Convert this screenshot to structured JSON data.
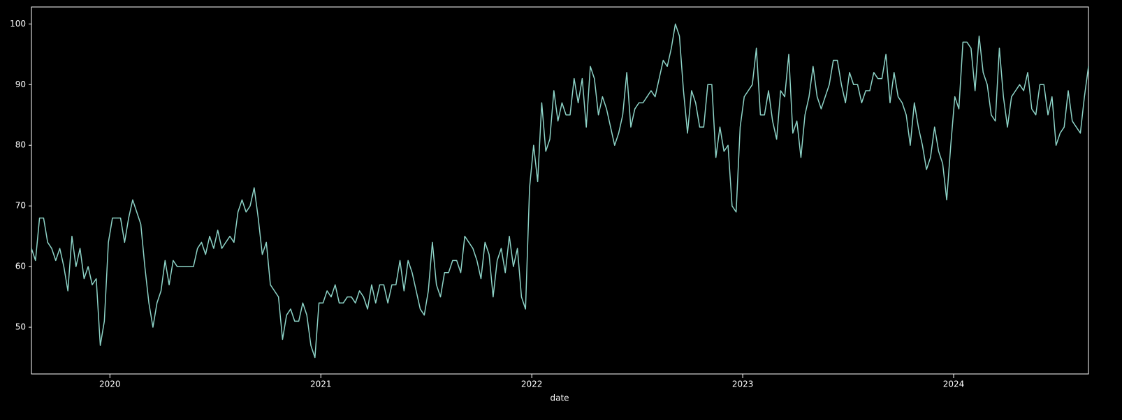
{
  "chart_data": {
    "type": "line",
    "x_label": "date",
    "color": "#8dd3c7",
    "xlim": [
      2019.628,
      2024.6392
    ],
    "xticks": [
      2020,
      2021,
      2022,
      2023,
      2024
    ],
    "ylim": [
      42.3,
      102.8
    ],
    "yticks": [
      50,
      60,
      70,
      80,
      90,
      100
    ],
    "x": [
      2019.628,
      2019.6472,
      2019.6664,
      2019.6856,
      2019.7048,
      2019.724,
      2019.7432,
      2019.7624,
      2019.7816,
      2019.8008,
      2019.82,
      2019.8392,
      2019.8584,
      2019.8776,
      2019.8968,
      2019.916,
      2019.9352,
      2019.9544,
      2019.9736,
      2019.9928,
      2020.012,
      2020.0312,
      2020.0504,
      2020.0696,
      2020.0888,
      2020.108,
      2020.1272,
      2020.1464,
      2020.1656,
      2020.1848,
      2020.204,
      2020.2232,
      2020.2424,
      2020.2616,
      2020.2808,
      2020.3,
      2020.3192,
      2020.3384,
      2020.3576,
      2020.3768,
      2020.396,
      2020.4152,
      2020.4344,
      2020.4536,
      2020.4728,
      2020.492,
      2020.5112,
      2020.5304,
      2020.5496,
      2020.5688,
      2020.588,
      2020.6072,
      2020.6264,
      2020.6456,
      2020.6648,
      2020.684,
      2020.7032,
      2020.7224,
      2020.7416,
      2020.7608,
      2020.78,
      2020.7992,
      2020.8184,
      2020.8376,
      2020.8568,
      2020.876,
      2020.8952,
      2020.9144,
      2020.9336,
      2020.9528,
      2020.972,
      2020.9912,
      2021.0104,
      2021.0296,
      2021.0488,
      2021.068,
      2021.0872,
      2021.1064,
      2021.1256,
      2021.1448,
      2021.164,
      2021.1832,
      2021.2024,
      2021.2216,
      2021.2408,
      2021.26,
      2021.2792,
      2021.2984,
      2021.3176,
      2021.3368,
      2021.356,
      2021.3752,
      2021.3944,
      2021.4136,
      2021.4328,
      2021.452,
      2021.4712,
      2021.4904,
      2021.5096,
      2021.5288,
      2021.548,
      2021.5672,
      2021.5864,
      2021.6056,
      2021.6248,
      2021.644,
      2021.6632,
      2021.6824,
      2021.7016,
      2021.7208,
      2021.74,
      2021.7592,
      2021.7784,
      2021.7976,
      2021.8168,
      2021.836,
      2021.8552,
      2021.8744,
      2021.8936,
      2021.9128,
      2021.932,
      2021.9512,
      2021.9704,
      2021.9896,
      2022.0088,
      2022.028,
      2022.0472,
      2022.0664,
      2022.0856,
      2022.1048,
      2022.124,
      2022.1432,
      2022.1624,
      2022.1816,
      2022.2008,
      2022.22,
      2022.2392,
      2022.2584,
      2022.2776,
      2022.2968,
      2022.316,
      2022.3352,
      2022.3544,
      2022.3736,
      2022.3928,
      2022.412,
      2022.4312,
      2022.4504,
      2022.4696,
      2022.4888,
      2022.508,
      2022.5272,
      2022.5464,
      2022.5656,
      2022.5848,
      2022.604,
      2022.6232,
      2022.6424,
      2022.6616,
      2022.6808,
      2022.7,
      2022.7192,
      2022.7384,
      2022.7576,
      2022.7768,
      2022.796,
      2022.8152,
      2022.8344,
      2022.8536,
      2022.8728,
      2022.892,
      2022.9112,
      2022.9304,
      2022.9496,
      2022.9688,
      2022.988,
      2023.0072,
      2023.0264,
      2023.0456,
      2023.0648,
      2023.084,
      2023.1032,
      2023.1224,
      2023.1416,
      2023.1608,
      2023.18,
      2023.1992,
      2023.2184,
      2023.2376,
      2023.2568,
      2023.276,
      2023.2952,
      2023.3144,
      2023.3336,
      2023.3528,
      2023.372,
      2023.3912,
      2023.4104,
      2023.4296,
      2023.4488,
      2023.468,
      2023.4872,
      2023.5064,
      2023.5256,
      2023.5448,
      2023.564,
      2023.5832,
      2023.6024,
      2023.6216,
      2023.6408,
      2023.66,
      2023.6792,
      2023.6984,
      2023.7176,
      2023.7368,
      2023.756,
      2023.7752,
      2023.7944,
      2023.8136,
      2023.8328,
      2023.852,
      2023.8712,
      2023.8904,
      2023.9096,
      2023.9288,
      2023.948,
      2023.9672,
      2023.9864,
      2024.0056,
      2024.0248,
      2024.044,
      2024.0632,
      2024.0824,
      2024.1016,
      2024.1208,
      2024.14,
      2024.1592,
      2024.1784,
      2024.1976,
      2024.2168,
      2024.236,
      2024.2552,
      2024.2744,
      2024.2936,
      2024.3128,
      2024.332,
      2024.3512,
      2024.3704,
      2024.3896,
      2024.4088,
      2024.428,
      2024.4472,
      2024.4664,
      2024.4856,
      2024.5048,
      2024.524,
      2024.5432,
      2024.5624,
      2024.5816,
      2024.6008,
      2024.62,
      2024.6392
    ],
    "values": [
      63,
      61,
      68,
      68,
      64,
      63,
      61,
      63,
      60,
      56,
      65,
      60,
      63,
      58,
      60,
      57,
      58,
      47,
      51,
      64,
      68,
      68,
      68,
      64,
      68,
      71,
      69,
      67,
      60,
      54,
      50,
      54,
      56,
      61,
      57,
      61,
      60,
      60,
      60,
      60,
      60,
      63,
      64,
      62,
      65,
      63,
      66,
      63,
      64,
      65,
      64,
      69,
      71,
      69,
      70,
      73,
      68,
      62,
      64,
      57,
      56,
      55,
      48,
      52,
      53,
      51,
      51,
      54,
      52,
      47,
      45,
      54,
      54,
      56,
      55,
      57,
      54,
      54,
      55,
      55,
      54,
      56,
      55,
      53,
      57,
      54,
      57,
      57,
      54,
      57,
      57,
      61,
      56,
      61,
      59,
      56,
      53,
      52,
      56,
      64,
      57,
      55,
      59,
      59,
      61,
      61,
      59,
      65,
      64,
      63,
      61,
      58,
      64,
      62,
      55,
      61,
      63,
      59,
      65,
      60,
      63,
      55,
      53,
      73,
      80,
      74,
      87,
      79,
      81,
      89,
      84,
      87,
      85,
      85,
      91,
      87,
      91,
      83,
      93,
      91,
      85,
      88,
      86,
      83,
      80,
      82,
      85,
      92,
      83,
      86,
      87,
      87,
      88,
      89,
      88,
      91,
      94,
      93,
      96,
      100,
      98,
      89,
      82,
      89,
      87,
      83,
      83,
      90,
      90,
      78,
      83,
      79,
      80,
      70,
      69,
      83,
      88,
      89,
      90,
      96,
      85,
      85,
      89,
      84,
      81,
      89,
      88,
      95,
      82,
      84,
      78,
      85,
      88,
      93,
      88,
      86,
      88,
      90,
      94,
      94,
      90,
      87,
      92,
      90,
      90,
      87,
      89,
      89,
      92,
      91,
      91,
      95,
      87,
      92,
      88,
      87,
      85,
      80,
      87,
      83,
      80,
      76,
      78,
      83,
      79,
      77,
      71,
      80,
      88,
      86,
      97,
      97,
      96,
      89,
      98,
      92,
      90,
      85,
      84,
      96,
      88,
      83,
      88,
      89,
      90,
      89,
      92,
      86,
      85,
      90,
      90,
      85,
      88,
      80,
      82,
      83,
      89,
      84,
      83,
      82,
      88,
      93
    ]
  }
}
